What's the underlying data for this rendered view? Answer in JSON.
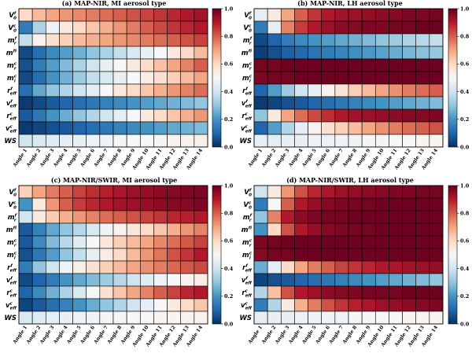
{
  "colormap": {
    "low": "#053061",
    "mid": "#f7f7f7",
    "high": "#67001f",
    "stops": [
      "#053061",
      "#2166ac",
      "#4393c3",
      "#92c5de",
      "#d1e5f0",
      "#f7f7f7",
      "#fddbc7",
      "#f4a582",
      "#d6604d",
      "#b2182b",
      "#67001f"
    ]
  },
  "chart_data": [
    {
      "type": "heatmap",
      "title": "(a) MAP-NIR, MI aerosol type",
      "x": [
        "Angle 1",
        "Angle 2",
        "Angle 3",
        "Angle 4",
        "Angle 5",
        "Angle 6",
        "Angle 7",
        "Angle 8",
        "Angle 9",
        "Angle 10",
        "Angle 11",
        "Angle 12",
        "Angle 13",
        "Angle 14"
      ],
      "y": [
        {
          "base": "V",
          "sup": "f",
          "sub": "0"
        },
        {
          "base": "V",
          "sup": "c",
          "sub": "0"
        },
        {
          "base": "m",
          "sup": "f",
          "sub": "r"
        },
        {
          "base": "m",
          "sup": "f",
          "sub": "i"
        },
        {
          "base": "m",
          "sup": "c",
          "sub": "r"
        },
        {
          "base": "m",
          "sup": "c",
          "sub": "i"
        },
        {
          "base": "r",
          "sup": "f",
          "sub": "eff"
        },
        {
          "base": "v",
          "sup": "f",
          "sub": "eff"
        },
        {
          "base": "r",
          "sup": "c",
          "sub": "eff"
        },
        {
          "base": "v",
          "sup": "c",
          "sub": "eff"
        },
        {
          "base": "WS",
          "sup": "",
          "sub": ""
        }
      ],
      "colorbar": {
        "min": 0.0,
        "max": 1.0,
        "ticks": [
          "0.0",
          "0.2",
          "0.4",
          "0.6",
          "0.8",
          "1.0"
        ]
      },
      "values": [
        [
          0.6,
          0.66,
          0.7,
          0.72,
          0.74,
          0.76,
          0.78,
          0.8,
          0.82,
          0.84,
          0.86,
          0.88,
          0.9,
          0.92
        ],
        [
          0.15,
          0.34,
          0.48,
          0.55,
          0.6,
          0.64,
          0.68,
          0.72,
          0.76,
          0.8,
          0.83,
          0.86,
          0.88,
          0.9
        ],
        [
          0.38,
          0.52,
          0.58,
          0.62,
          0.66,
          0.68,
          0.7,
          0.72,
          0.74,
          0.76,
          0.78,
          0.8,
          0.82,
          0.84
        ],
        [
          0.05,
          0.12,
          0.18,
          0.22,
          0.26,
          0.3,
          0.34,
          0.38,
          0.42,
          0.46,
          0.5,
          0.55,
          0.6,
          0.66
        ],
        [
          0.06,
          0.15,
          0.22,
          0.28,
          0.34,
          0.4,
          0.46,
          0.5,
          0.55,
          0.6,
          0.65,
          0.7,
          0.75,
          0.8
        ],
        [
          0.05,
          0.12,
          0.2,
          0.26,
          0.32,
          0.38,
          0.42,
          0.46,
          0.5,
          0.54,
          0.58,
          0.62,
          0.66,
          0.7
        ],
        [
          0.12,
          0.24,
          0.3,
          0.35,
          0.4,
          0.45,
          0.5,
          0.55,
          0.6,
          0.64,
          0.68,
          0.72,
          0.75,
          0.78
        ],
        [
          0.02,
          0.05,
          0.08,
          0.1,
          0.12,
          0.14,
          0.16,
          0.18,
          0.2,
          0.22,
          0.24,
          0.26,
          0.28,
          0.3
        ],
        [
          0.08,
          0.14,
          0.2,
          0.25,
          0.3,
          0.35,
          0.4,
          0.45,
          0.5,
          0.55,
          0.6,
          0.64,
          0.68,
          0.72
        ],
        [
          0.02,
          0.04,
          0.06,
          0.08,
          0.1,
          0.12,
          0.14,
          0.16,
          0.18,
          0.2,
          0.22,
          0.24,
          0.26,
          0.28
        ],
        [
          0.4,
          0.42,
          0.44,
          0.45,
          0.46,
          0.47,
          0.48,
          0.49,
          0.5,
          0.5,
          0.51,
          0.52,
          0.52,
          0.53
        ]
      ]
    },
    {
      "type": "heatmap",
      "title": "(b) MAP-NIR, LH aerosol type",
      "x": [
        "Angle 1",
        "Angle 2",
        "Angle 3",
        "Angle 4",
        "Angle 5",
        "Angle 6",
        "Angle 7",
        "Angle 8",
        "Angle 9",
        "Angle 10",
        "Angle 11",
        "Angle 12",
        "Angle 13",
        "Angle 14"
      ],
      "y": [
        {
          "base": "V",
          "sup": "f",
          "sub": "0"
        },
        {
          "base": "V",
          "sup": "c",
          "sub": "0"
        },
        {
          "base": "m",
          "sup": "f",
          "sub": "r"
        },
        {
          "base": "m",
          "sup": "f",
          "sub": "i"
        },
        {
          "base": "m",
          "sup": "c",
          "sub": "r"
        },
        {
          "base": "m",
          "sup": "c",
          "sub": "i"
        },
        {
          "base": "r",
          "sup": "f",
          "sub": "eff"
        },
        {
          "base": "v",
          "sup": "f",
          "sub": "eff"
        },
        {
          "base": "r",
          "sup": "c",
          "sub": "eff"
        },
        {
          "base": "v",
          "sup": "c",
          "sub": "eff"
        },
        {
          "base": "WS",
          "sup": "",
          "sub": ""
        }
      ],
      "colorbar": {
        "min": 0.0,
        "max": 1.0,
        "ticks": [
          "0.0",
          "0.2",
          "0.4",
          "0.6",
          "0.8",
          "1.0"
        ]
      },
      "values": [
        [
          0.45,
          0.55,
          0.7,
          0.8,
          0.86,
          0.9,
          0.92,
          0.93,
          0.94,
          0.95,
          0.96,
          0.97,
          0.97,
          0.98
        ],
        [
          0.15,
          0.45,
          0.75,
          0.85,
          0.9,
          0.93,
          0.95,
          0.96,
          0.97,
          0.97,
          0.98,
          0.98,
          0.99,
          0.99
        ],
        [
          0.05,
          0.1,
          0.15,
          0.18,
          0.2,
          0.22,
          0.24,
          0.26,
          0.28,
          0.3,
          0.32,
          0.34,
          0.36,
          0.38
        ],
        [
          0.03,
          0.06,
          0.09,
          0.11,
          0.13,
          0.15,
          0.17,
          0.19,
          0.21,
          0.23,
          0.25,
          0.27,
          0.29,
          0.31
        ],
        [
          0.98,
          0.98,
          0.99,
          0.99,
          0.99,
          0.99,
          0.99,
          0.99,
          0.99,
          0.99,
          0.99,
          0.99,
          0.99,
          0.99
        ],
        [
          0.97,
          0.98,
          0.98,
          0.99,
          0.99,
          0.99,
          0.99,
          0.99,
          0.99,
          0.99,
          0.99,
          0.99,
          0.99,
          0.99
        ],
        [
          0.1,
          0.22,
          0.32,
          0.4,
          0.46,
          0.52,
          0.57,
          0.62,
          0.66,
          0.7,
          0.73,
          0.76,
          0.78,
          0.8
        ],
        [
          0.02,
          0.04,
          0.06,
          0.08,
          0.1,
          0.12,
          0.14,
          0.16,
          0.18,
          0.2,
          0.22,
          0.24,
          0.26,
          0.28
        ],
        [
          0.3,
          0.55,
          0.7,
          0.78,
          0.83,
          0.87,
          0.9,
          0.92,
          0.93,
          0.94,
          0.95,
          0.96,
          0.96,
          0.97
        ],
        [
          0.1,
          0.22,
          0.35,
          0.45,
          0.52,
          0.58,
          0.62,
          0.66,
          0.7,
          0.73,
          0.76,
          0.78,
          0.8,
          0.82
        ],
        [
          0.45,
          0.45,
          0.46,
          0.46,
          0.47,
          0.47,
          0.48,
          0.48,
          0.49,
          0.49,
          0.5,
          0.5,
          0.51,
          0.51
        ]
      ]
    },
    {
      "type": "heatmap",
      "title": "(c) MAP-NIR/SWIR, MI aerosol type",
      "x": [
        "Angle 1",
        "Angle 2",
        "Angle 3",
        "Angle 4",
        "Angle 5",
        "Angle 6",
        "Angle 7",
        "Angle 8",
        "Angle 9",
        "Angle 10",
        "Angle 11",
        "Angle 12",
        "Angle 13",
        "Angle 14"
      ],
      "y": [
        {
          "base": "V",
          "sup": "f",
          "sub": "0"
        },
        {
          "base": "V",
          "sup": "c",
          "sub": "0"
        },
        {
          "base": "m",
          "sup": "f",
          "sub": "r"
        },
        {
          "base": "m",
          "sup": "f",
          "sub": "i"
        },
        {
          "base": "m",
          "sup": "c",
          "sub": "r"
        },
        {
          "base": "m",
          "sup": "c",
          "sub": "i"
        },
        {
          "base": "r",
          "sup": "f",
          "sub": "eff"
        },
        {
          "base": "v",
          "sup": "f",
          "sub": "eff"
        },
        {
          "base": "r",
          "sup": "c",
          "sub": "eff"
        },
        {
          "base": "v",
          "sup": "c",
          "sub": "eff"
        },
        {
          "base": "WS",
          "sup": "",
          "sub": ""
        }
      ],
      "colorbar": {
        "min": 0.0,
        "max": 1.0,
        "ticks": [
          "0.0",
          "0.2",
          "0.4",
          "0.6",
          "0.8",
          "1.0"
        ]
      },
      "values": [
        [
          0.62,
          0.7,
          0.76,
          0.8,
          0.84,
          0.87,
          0.89,
          0.91,
          0.93,
          0.94,
          0.95,
          0.96,
          0.97,
          0.97
        ],
        [
          0.2,
          0.55,
          0.72,
          0.8,
          0.85,
          0.88,
          0.9,
          0.92,
          0.93,
          0.94,
          0.95,
          0.96,
          0.96,
          0.97
        ],
        [
          0.4,
          0.55,
          0.63,
          0.68,
          0.72,
          0.75,
          0.78,
          0.8,
          0.82,
          0.84,
          0.86,
          0.88,
          0.89,
          0.9
        ],
        [
          0.08,
          0.16,
          0.24,
          0.3,
          0.36,
          0.42,
          0.48,
          0.52,
          0.56,
          0.6,
          0.64,
          0.68,
          0.72,
          0.75
        ],
        [
          0.08,
          0.18,
          0.28,
          0.36,
          0.44,
          0.5,
          0.56,
          0.62,
          0.66,
          0.7,
          0.74,
          0.78,
          0.81,
          0.84
        ],
        [
          0.06,
          0.14,
          0.22,
          0.3,
          0.38,
          0.46,
          0.54,
          0.6,
          0.66,
          0.72,
          0.77,
          0.82,
          0.86,
          0.9
        ],
        [
          0.15,
          0.3,
          0.4,
          0.47,
          0.53,
          0.58,
          0.62,
          0.66,
          0.7,
          0.73,
          0.76,
          0.79,
          0.81,
          0.83
        ],
        [
          0.05,
          0.1,
          0.15,
          0.2,
          0.24,
          0.28,
          0.32,
          0.36,
          0.4,
          0.44,
          0.47,
          0.5,
          0.52,
          0.54
        ],
        [
          0.1,
          0.18,
          0.26,
          0.34,
          0.42,
          0.5,
          0.58,
          0.64,
          0.7,
          0.75,
          0.8,
          0.84,
          0.88,
          0.9
        ],
        [
          0.04,
          0.08,
          0.12,
          0.16,
          0.2,
          0.25,
          0.3,
          0.35,
          0.4,
          0.45,
          0.5,
          0.55,
          0.6,
          0.64
        ],
        [
          0.42,
          0.44,
          0.45,
          0.46,
          0.47,
          0.48,
          0.49,
          0.49,
          0.5,
          0.5,
          0.51,
          0.51,
          0.52,
          0.52
        ]
      ]
    },
    {
      "type": "heatmap",
      "title": "(d) MAP-NIR/SWIR, LH aerosol type",
      "x": [
        "Angle 1",
        "Angle 2",
        "Angle 3",
        "Angle 4",
        "Angle 5",
        "Angle 6",
        "Angle 7",
        "Angle 8",
        "Angle 9",
        "Angle 10",
        "Angle 11",
        "Angle 12",
        "Angle 13",
        "Angle 14"
      ],
      "y": [
        {
          "base": "V",
          "sup": "f",
          "sub": "0"
        },
        {
          "base": "V",
          "sup": "c",
          "sub": "0"
        },
        {
          "base": "m",
          "sup": "f",
          "sub": "r"
        },
        {
          "base": "m",
          "sup": "f",
          "sub": "i"
        },
        {
          "base": "m",
          "sup": "c",
          "sub": "r"
        },
        {
          "base": "m",
          "sup": "c",
          "sub": "i"
        },
        {
          "base": "r",
          "sup": "f",
          "sub": "eff"
        },
        {
          "base": "v",
          "sup": "f",
          "sub": "eff"
        },
        {
          "base": "r",
          "sup": "c",
          "sub": "eff"
        },
        {
          "base": "v",
          "sup": "c",
          "sub": "eff"
        },
        {
          "base": "WS",
          "sup": "",
          "sub": ""
        }
      ],
      "colorbar": {
        "min": 0.0,
        "max": 1.0,
        "ticks": [
          "0.0",
          "0.2",
          "0.4",
          "0.6",
          "0.8",
          "1.0"
        ]
      },
      "values": [
        [
          0.4,
          0.55,
          0.72,
          0.82,
          0.88,
          0.91,
          0.93,
          0.94,
          0.95,
          0.96,
          0.97,
          0.97,
          0.98,
          0.98
        ],
        [
          0.15,
          0.5,
          0.8,
          0.9,
          0.94,
          0.96,
          0.97,
          0.98,
          0.98,
          0.99,
          0.99,
          0.99,
          0.99,
          0.99
        ],
        [
          0.3,
          0.75,
          0.9,
          0.95,
          0.97,
          0.98,
          0.98,
          0.99,
          0.99,
          0.99,
          0.99,
          0.99,
          0.99,
          0.99
        ],
        [
          0.2,
          0.6,
          0.82,
          0.9,
          0.94,
          0.96,
          0.97,
          0.98,
          0.98,
          0.99,
          0.99,
          0.99,
          0.99,
          0.99
        ],
        [
          0.97,
          0.98,
          0.99,
          0.99,
          0.99,
          0.99,
          0.99,
          0.99,
          0.99,
          0.99,
          0.99,
          0.99,
          0.99,
          0.99
        ],
        [
          0.96,
          0.98,
          0.98,
          0.99,
          0.99,
          0.99,
          0.99,
          0.99,
          0.99,
          0.99,
          0.99,
          0.99,
          0.99,
          0.99
        ],
        [
          0.25,
          0.45,
          0.6,
          0.7,
          0.76,
          0.8,
          0.84,
          0.86,
          0.88,
          0.9,
          0.91,
          0.92,
          0.93,
          0.94
        ],
        [
          0.04,
          0.06,
          0.08,
          0.1,
          0.12,
          0.14,
          0.16,
          0.18,
          0.2,
          0.22,
          0.24,
          0.26,
          0.28,
          0.3
        ],
        [
          0.35,
          0.65,
          0.82,
          0.9,
          0.93,
          0.95,
          0.96,
          0.97,
          0.98,
          0.98,
          0.98,
          0.99,
          0.99,
          0.99
        ],
        [
          0.15,
          0.35,
          0.55,
          0.68,
          0.76,
          0.82,
          0.86,
          0.89,
          0.91,
          0.93,
          0.94,
          0.95,
          0.96,
          0.97
        ],
        [
          0.45,
          0.46,
          0.46,
          0.47,
          0.47,
          0.48,
          0.48,
          0.49,
          0.49,
          0.5,
          0.5,
          0.51,
          0.51,
          0.51
        ]
      ]
    }
  ]
}
